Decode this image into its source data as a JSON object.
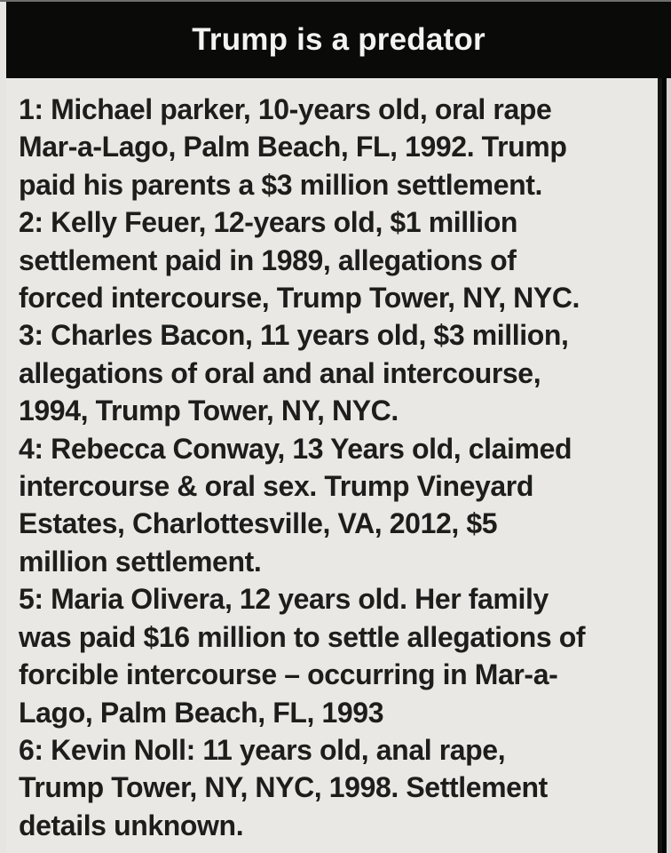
{
  "colors": {
    "header_bg": "#0a0a08",
    "title_text": "#f3f3f3",
    "panel_bg": "#e9e8e5",
    "body_text": "#1d1d1b"
  },
  "header": {
    "title": "Trump is a predator"
  },
  "claims": {
    "items": [
      {
        "lines": [
          "1: Michael parker, 10-years old, oral rape",
          "Mar-a-Lago, Palm Beach, FL, 1992. Trump",
          "paid his parents a $3 million settlement."
        ]
      },
      {
        "lines": [
          "2: Kelly Feuer, 12-years old, $1 million",
          "settlement paid in 1989, allegations of",
          "forced intercourse, Trump Tower, NY, NYC."
        ]
      },
      {
        "lines": [
          "3: Charles Bacon, 11 years old, $3 million,",
          "allegations of oral and anal intercourse,",
          "1994, Trump Tower, NY, NYC."
        ]
      },
      {
        "lines": [
          "4: Rebecca Conway, 13 Years old, claimed",
          "intercourse & oral sex. Trump Vineyard",
          "Estates, Charlottesville, VA, 2012, $5",
          "million settlement."
        ]
      },
      {
        "lines": [
          "5: Maria Olivera, 12 years old. Her family",
          "was paid $16 million to settle allegations of",
          "forcible intercourse – occurring in Mar-a-",
          "Lago, Palm Beach, FL, 1993"
        ]
      },
      {
        "lines": [
          "6: Kevin Noll: 11 years old, anal rape,",
          "Trump Tower, NY, NYC, 1998. Settlement",
          "details unknown."
        ]
      }
    ]
  }
}
